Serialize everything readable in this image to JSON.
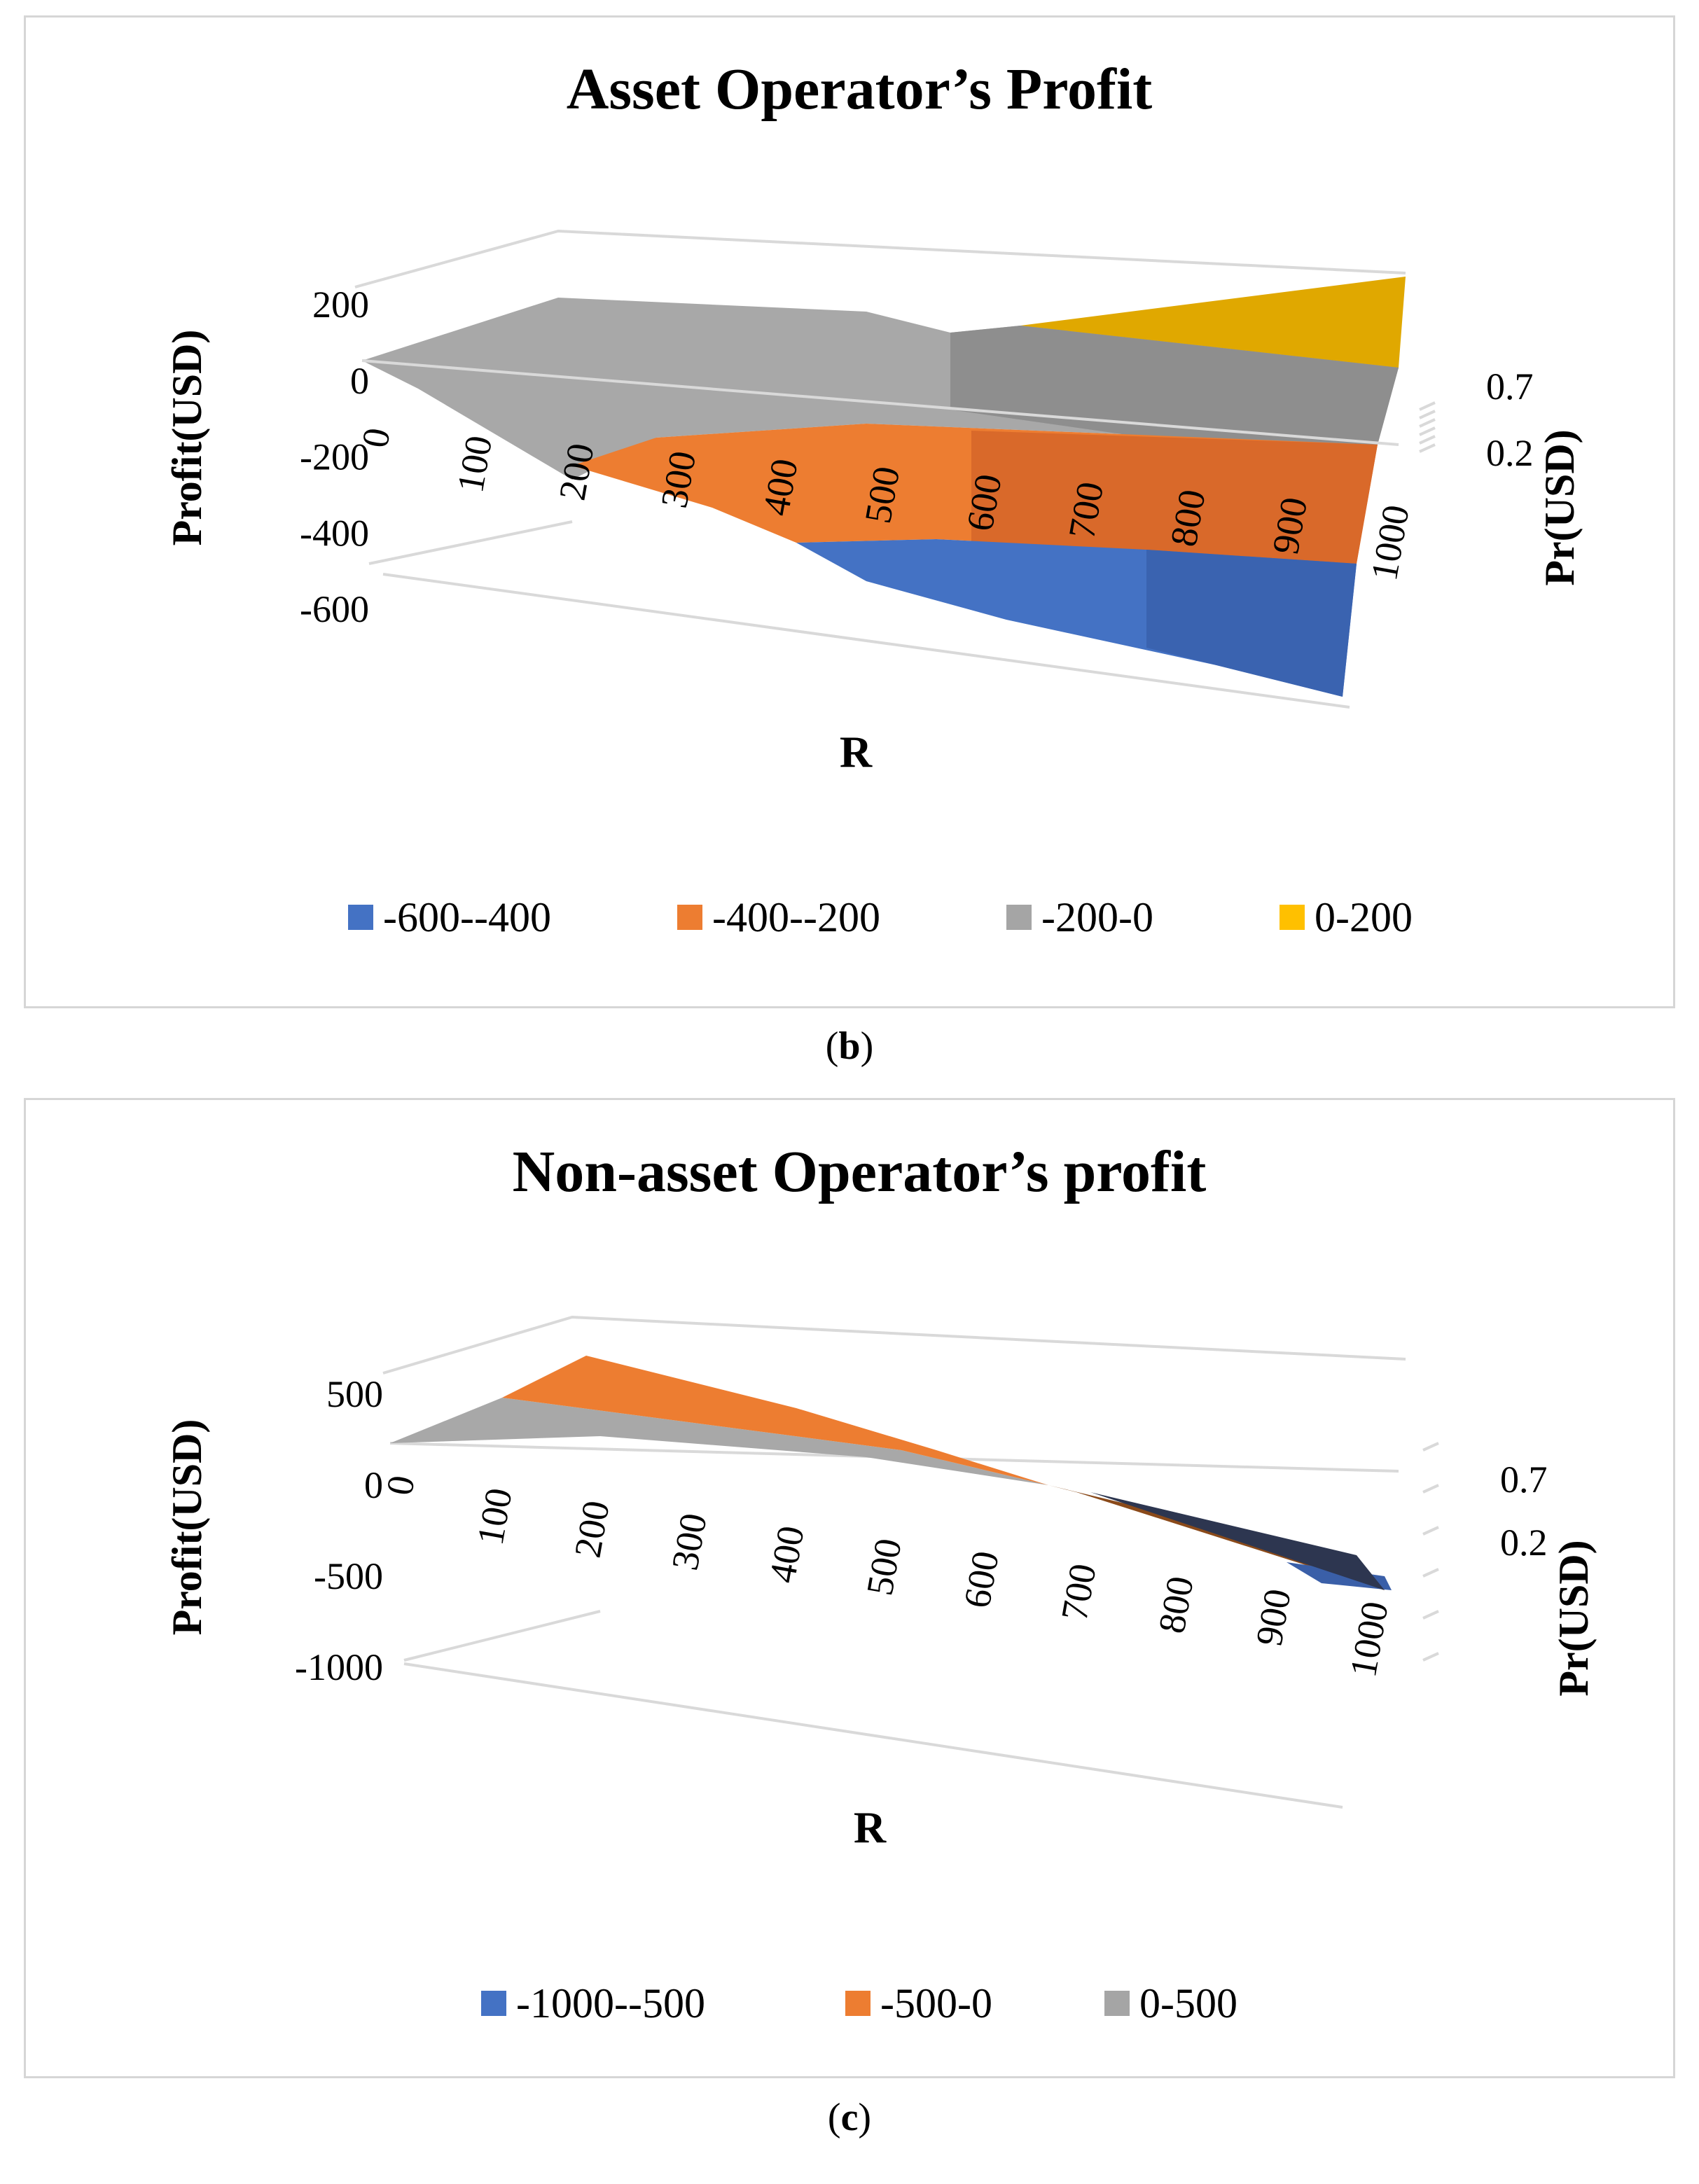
{
  "panels": [
    {
      "id": "b",
      "caption_letter": "b",
      "chart_data": {
        "type": "surface",
        "title": "Asset Operator’s Profit",
        "xlabel": "R",
        "ylabel": "Profit(USD)",
        "zlabel": "Pr(USD)",
        "x": [
          0,
          100,
          200,
          300,
          400,
          500,
          600,
          700,
          800,
          900,
          1000
        ],
        "z_ticks": [
          "0.7",
          "0.2"
        ],
        "y_ticks": [
          200,
          0,
          -200,
          -400,
          -600
        ],
        "ylim": [
          -600,
          200
        ],
        "series": [
          {
            "name": "Pr=0.7",
            "values": [
              0,
              10,
              20,
              20,
              15,
              10,
              -20,
              0,
              60,
              120,
              180
            ]
          },
          {
            "name": "Pr=0.2",
            "values": [
              0,
              -60,
              -150,
              -260,
              -330,
              -430,
              -460,
              -490,
              -530,
              -570,
              -610
            ]
          }
        ],
        "legend": [
          {
            "label": "-600--400",
            "color": "#4472C4"
          },
          {
            "label": "-400--200",
            "color": "#ED7D31"
          },
          {
            "label": "-200-0",
            "color": "#A5A5A5"
          },
          {
            "label": "0-200",
            "color": "#FFC000"
          }
        ],
        "legend_position": "bottom",
        "grid": true
      }
    },
    {
      "id": "c",
      "caption_letter": "c",
      "chart_data": {
        "type": "surface",
        "title": "Non-asset Operator’s profit",
        "xlabel": "R",
        "ylabel": "Profit(USD)",
        "zlabel": "Pr(USD)",
        "x": [
          0,
          100,
          200,
          300,
          400,
          500,
          600,
          700,
          800,
          900,
          1000
        ],
        "z_ticks": [
          "0.7",
          "0.2"
        ],
        "y_ticks": [
          500,
          0,
          -500,
          -1000
        ],
        "ylim": [
          -1000,
          500
        ],
        "series": [
          {
            "name": "Pr=0.7",
            "values": [
              0,
              200,
              300,
              260,
              200,
              130,
              50,
              -40,
              -130,
              -230,
              -330
            ]
          },
          {
            "name": "Pr=0.2",
            "values": [
              0,
              20,
              30,
              20,
              10,
              -20,
              -60,
              -130,
              -220,
              -330,
              -460
            ]
          }
        ],
        "legend": [
          {
            "label": "-1000--500",
            "color": "#4472C4"
          },
          {
            "label": "-500-0",
            "color": "#ED7D31"
          },
          {
            "label": "0-500",
            "color": "#A5A5A5"
          }
        ],
        "legend_position": "bottom",
        "grid": true
      }
    }
  ]
}
